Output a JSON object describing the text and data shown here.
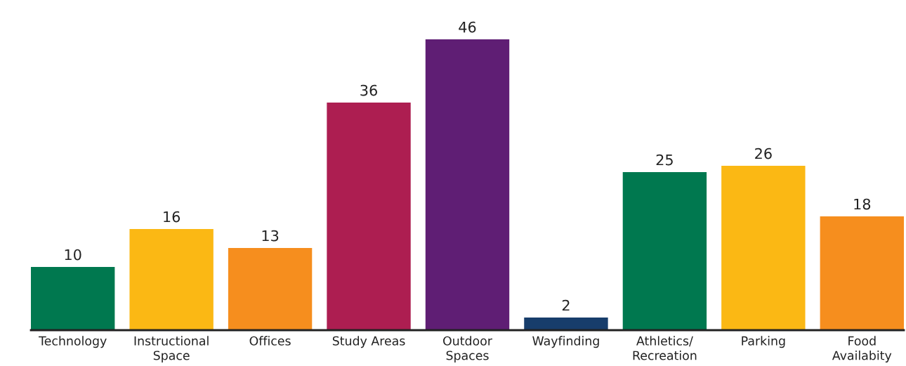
{
  "chart_data": {
    "type": "bar",
    "categories": [
      "Technology",
      "Instructional\nSpace",
      "Offices",
      "Study Areas",
      "Outdoor\nSpaces",
      "Wayfinding",
      "Athletics/\nRecreation",
      "Parking",
      "Food\nAvailabity"
    ],
    "values": [
      10,
      16,
      13,
      36,
      46,
      2,
      25,
      26,
      18
    ],
    "colors": [
      "#00784f",
      "#fbb814",
      "#f68e1e",
      "#ad1e51",
      "#5f1e74",
      "#173d6b",
      "#00784f",
      "#fbb814",
      "#f68e1e"
    ],
    "data_labels": true,
    "grid": false,
    "legend": false
  }
}
